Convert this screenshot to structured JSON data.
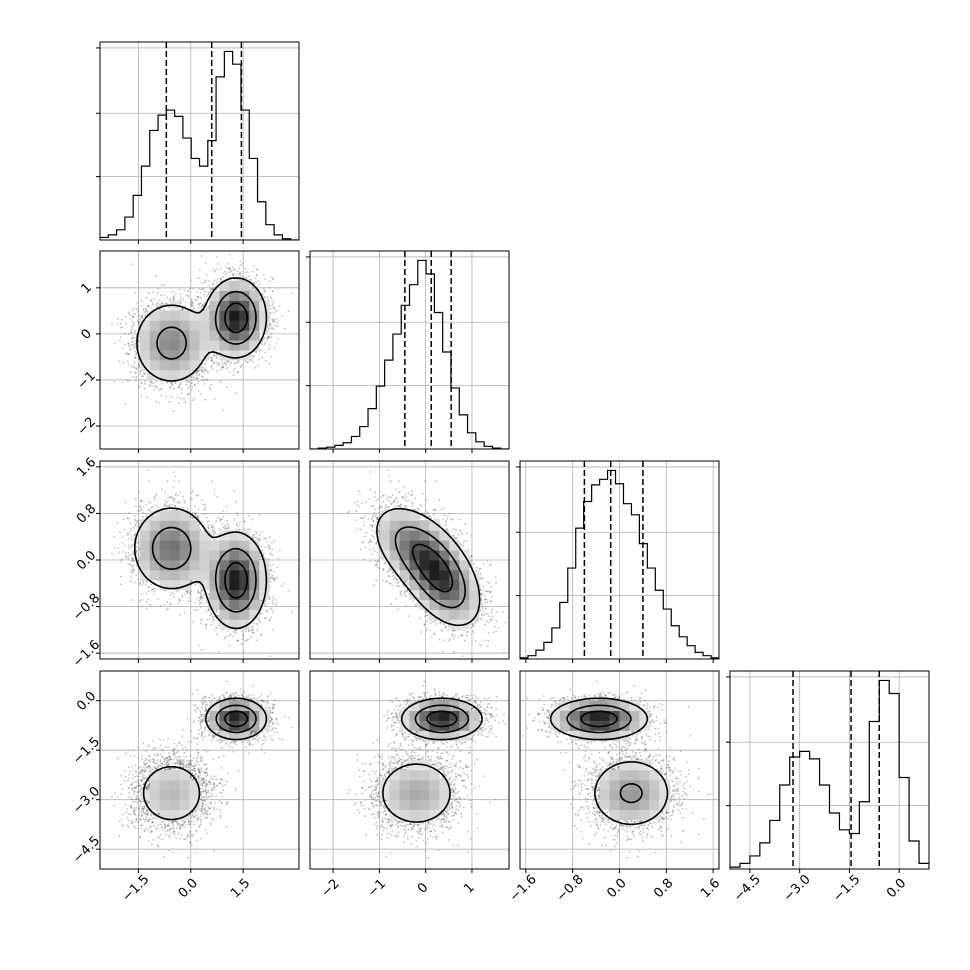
{
  "figure": {
    "kind": "corner plot",
    "grid": true,
    "background": "#ffffff"
  },
  "chart_data": {
    "type": "corner",
    "parameters": [
      {
        "range": [
          -2.6,
          3.1
        ],
        "ticks": [
          -1.5,
          0.0,
          1.5
        ],
        "tick_labels": [
          "−1.5",
          "0.0",
          "1.5"
        ],
        "quantiles": [
          -0.7,
          0.6,
          1.45
        ]
      },
      {
        "range": [
          -2.5,
          1.8
        ],
        "ticks": [
          -2,
          -1,
          0,
          1
        ],
        "tick_labels": [
          "−2",
          "−1",
          "0",
          "1"
        ],
        "quantiles": [
          -0.45,
          0.12,
          0.55
        ]
      },
      {
        "range": [
          -1.7,
          1.7
        ],
        "ticks": [
          -1.6,
          -0.8,
          0.0,
          0.8,
          1.6
        ],
        "tick_labels": [
          "−1.6",
          "−0.8",
          "0.0",
          "0.8",
          "1.6"
        ],
        "quantiles": [
          -0.6,
          -0.15,
          0.4
        ]
      },
      {
        "range": [
          -5.1,
          0.9
        ],
        "ticks": [
          -4.5,
          -3.0,
          -1.5,
          0.0
        ],
        "tick_labels": [
          "−4.5",
          "−3.0",
          "−1.5",
          "0.0"
        ],
        "quantiles": [
          -3.2,
          -1.45,
          -0.6
        ]
      }
    ],
    "histograms": [
      {
        "counts": [
          2,
          4,
          8,
          18,
          35,
          58,
          86,
          98,
          102,
          97,
          80,
          64,
          58,
          78,
          128,
          148,
          138,
          102,
          64,
          30,
          12,
          4,
          1,
          0
        ]
      },
      {
        "counts": [
          0,
          1,
          2,
          4,
          7,
          14,
          25,
          45,
          70,
          99,
          128,
          160,
          183,
          210,
          195,
          152,
          108,
          68,
          38,
          18,
          8,
          3,
          1,
          0
        ]
      },
      {
        "counts": [
          1,
          3,
          8,
          15,
          28,
          51,
          82,
          118,
          142,
          157,
          162,
          170,
          158,
          140,
          130,
          104,
          82,
          62,
          45,
          30,
          20,
          12,
          6,
          3,
          1
        ]
      },
      {
        "counts": [
          2,
          6,
          14,
          28,
          52,
          90,
          120,
          126,
          118,
          90,
          60,
          42,
          38,
          72,
          158,
          202,
          188,
          98,
          30,
          6
        ]
      }
    ],
    "modes": [
      {
        "weight": 0.45,
        "mean": [
          -0.55,
          -0.2,
          0.2,
          -2.8
        ],
        "sd": [
          0.58,
          0.48,
          0.38,
          0.58
        ]
      },
      {
        "weight": 0.55,
        "mean": [
          1.3,
          0.35,
          -0.35,
          -0.55
        ],
        "sd": [
          0.42,
          0.42,
          0.4,
          0.3
        ]
      }
    ],
    "correlations": [
      {
        "pair": [
          1,
          2
        ],
        "r": -0.45
      }
    ],
    "contour_levels": 3,
    "scatter_color": "#555555",
    "line_color": "#000000",
    "grid_color": "#b0b0b0"
  }
}
